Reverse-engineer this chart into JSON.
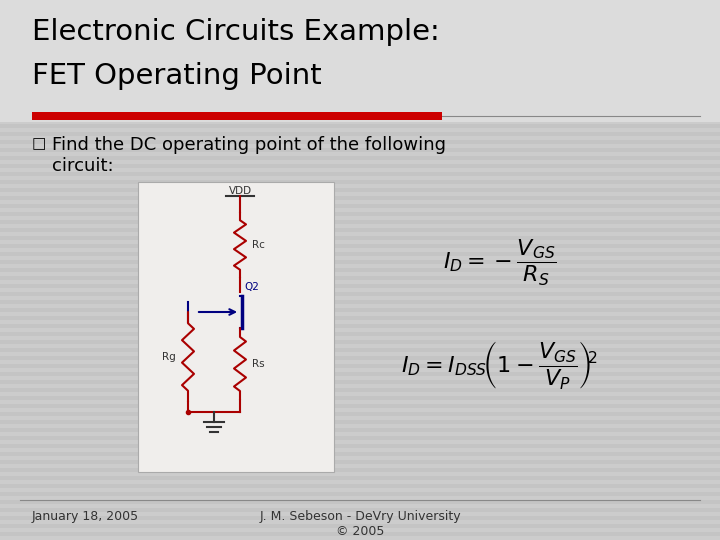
{
  "title_line1": "Electronic Circuits Example:",
  "title_line2": "FET Operating Point",
  "bullet_text1": "Find the DC operating point of the following",
  "bullet_text2": "circuit:",
  "bg_color": "#c8c8c8",
  "stripe_color1": "#cccccc",
  "stripe_color2": "#c4c4c4",
  "title_color": "#000000",
  "red_bar_color": "#cc0000",
  "footer_left": "January 18, 2005",
  "footer_right": "J. M. Sebeson - DeVry University\n© 2005",
  "circuit_bg": "#f0eeec",
  "circuit_red": "#aa0000",
  "circuit_blue": "#000080",
  "circuit_dark": "#333333"
}
